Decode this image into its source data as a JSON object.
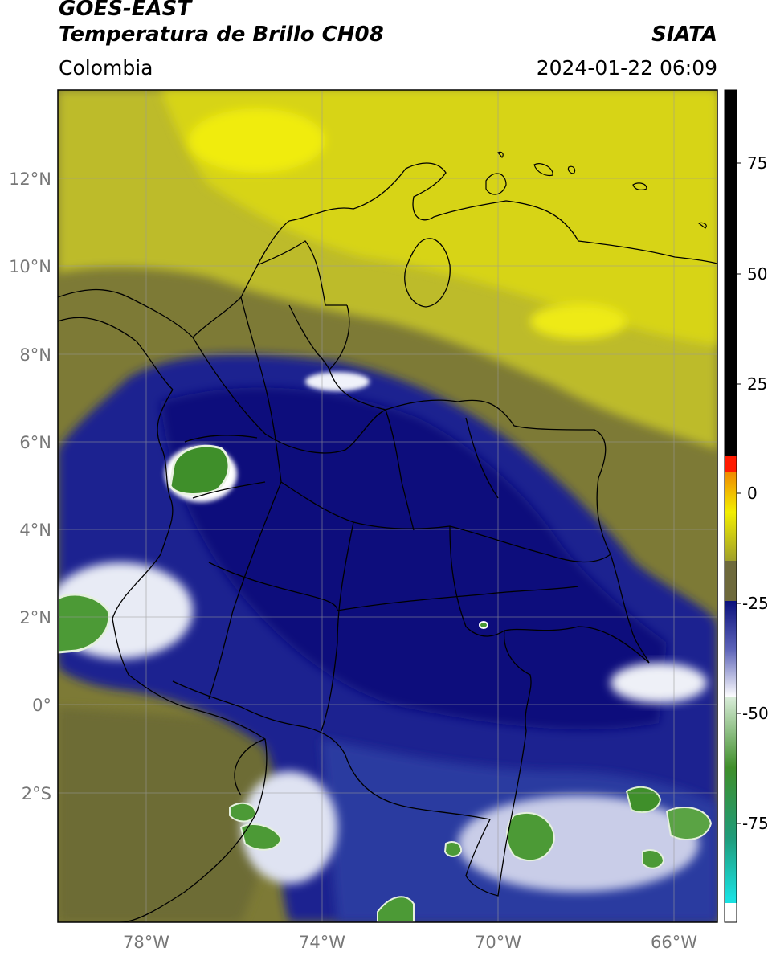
{
  "header": {
    "satellite": "GOES-EAST",
    "product": "Temperatura de Brillo CH08",
    "agency": "SIATA",
    "region": "Colombia",
    "timestamp": "2024-01-22 06:09"
  },
  "map": {
    "lat_labels": [
      "12°N",
      "10°N",
      "8°N",
      "6°N",
      "4°N",
      "2°N",
      "0°",
      "2°S"
    ],
    "lon_labels": [
      "78°W",
      "74°W",
      "70°W",
      "66°W"
    ],
    "extent": {
      "lon_min": -80,
      "lon_max": -65,
      "lat_min": -5,
      "lat_max": 14
    }
  },
  "colorbar": {
    "ticks": [
      "75",
      "50",
      "25",
      "0",
      "-25",
      "-50",
      "-75"
    ],
    "range": [
      -95,
      90
    ],
    "colors": {
      "hot": "#000000",
      "red": "#ff1a00",
      "orange": "#f08a00",
      "yellow": "#f2ee00",
      "olive": "#8d8a3a",
      "navy": "#0b117c",
      "white": "#ffffff",
      "green": "#3f8f2a",
      "cyan": "#19e0e0"
    }
  }
}
